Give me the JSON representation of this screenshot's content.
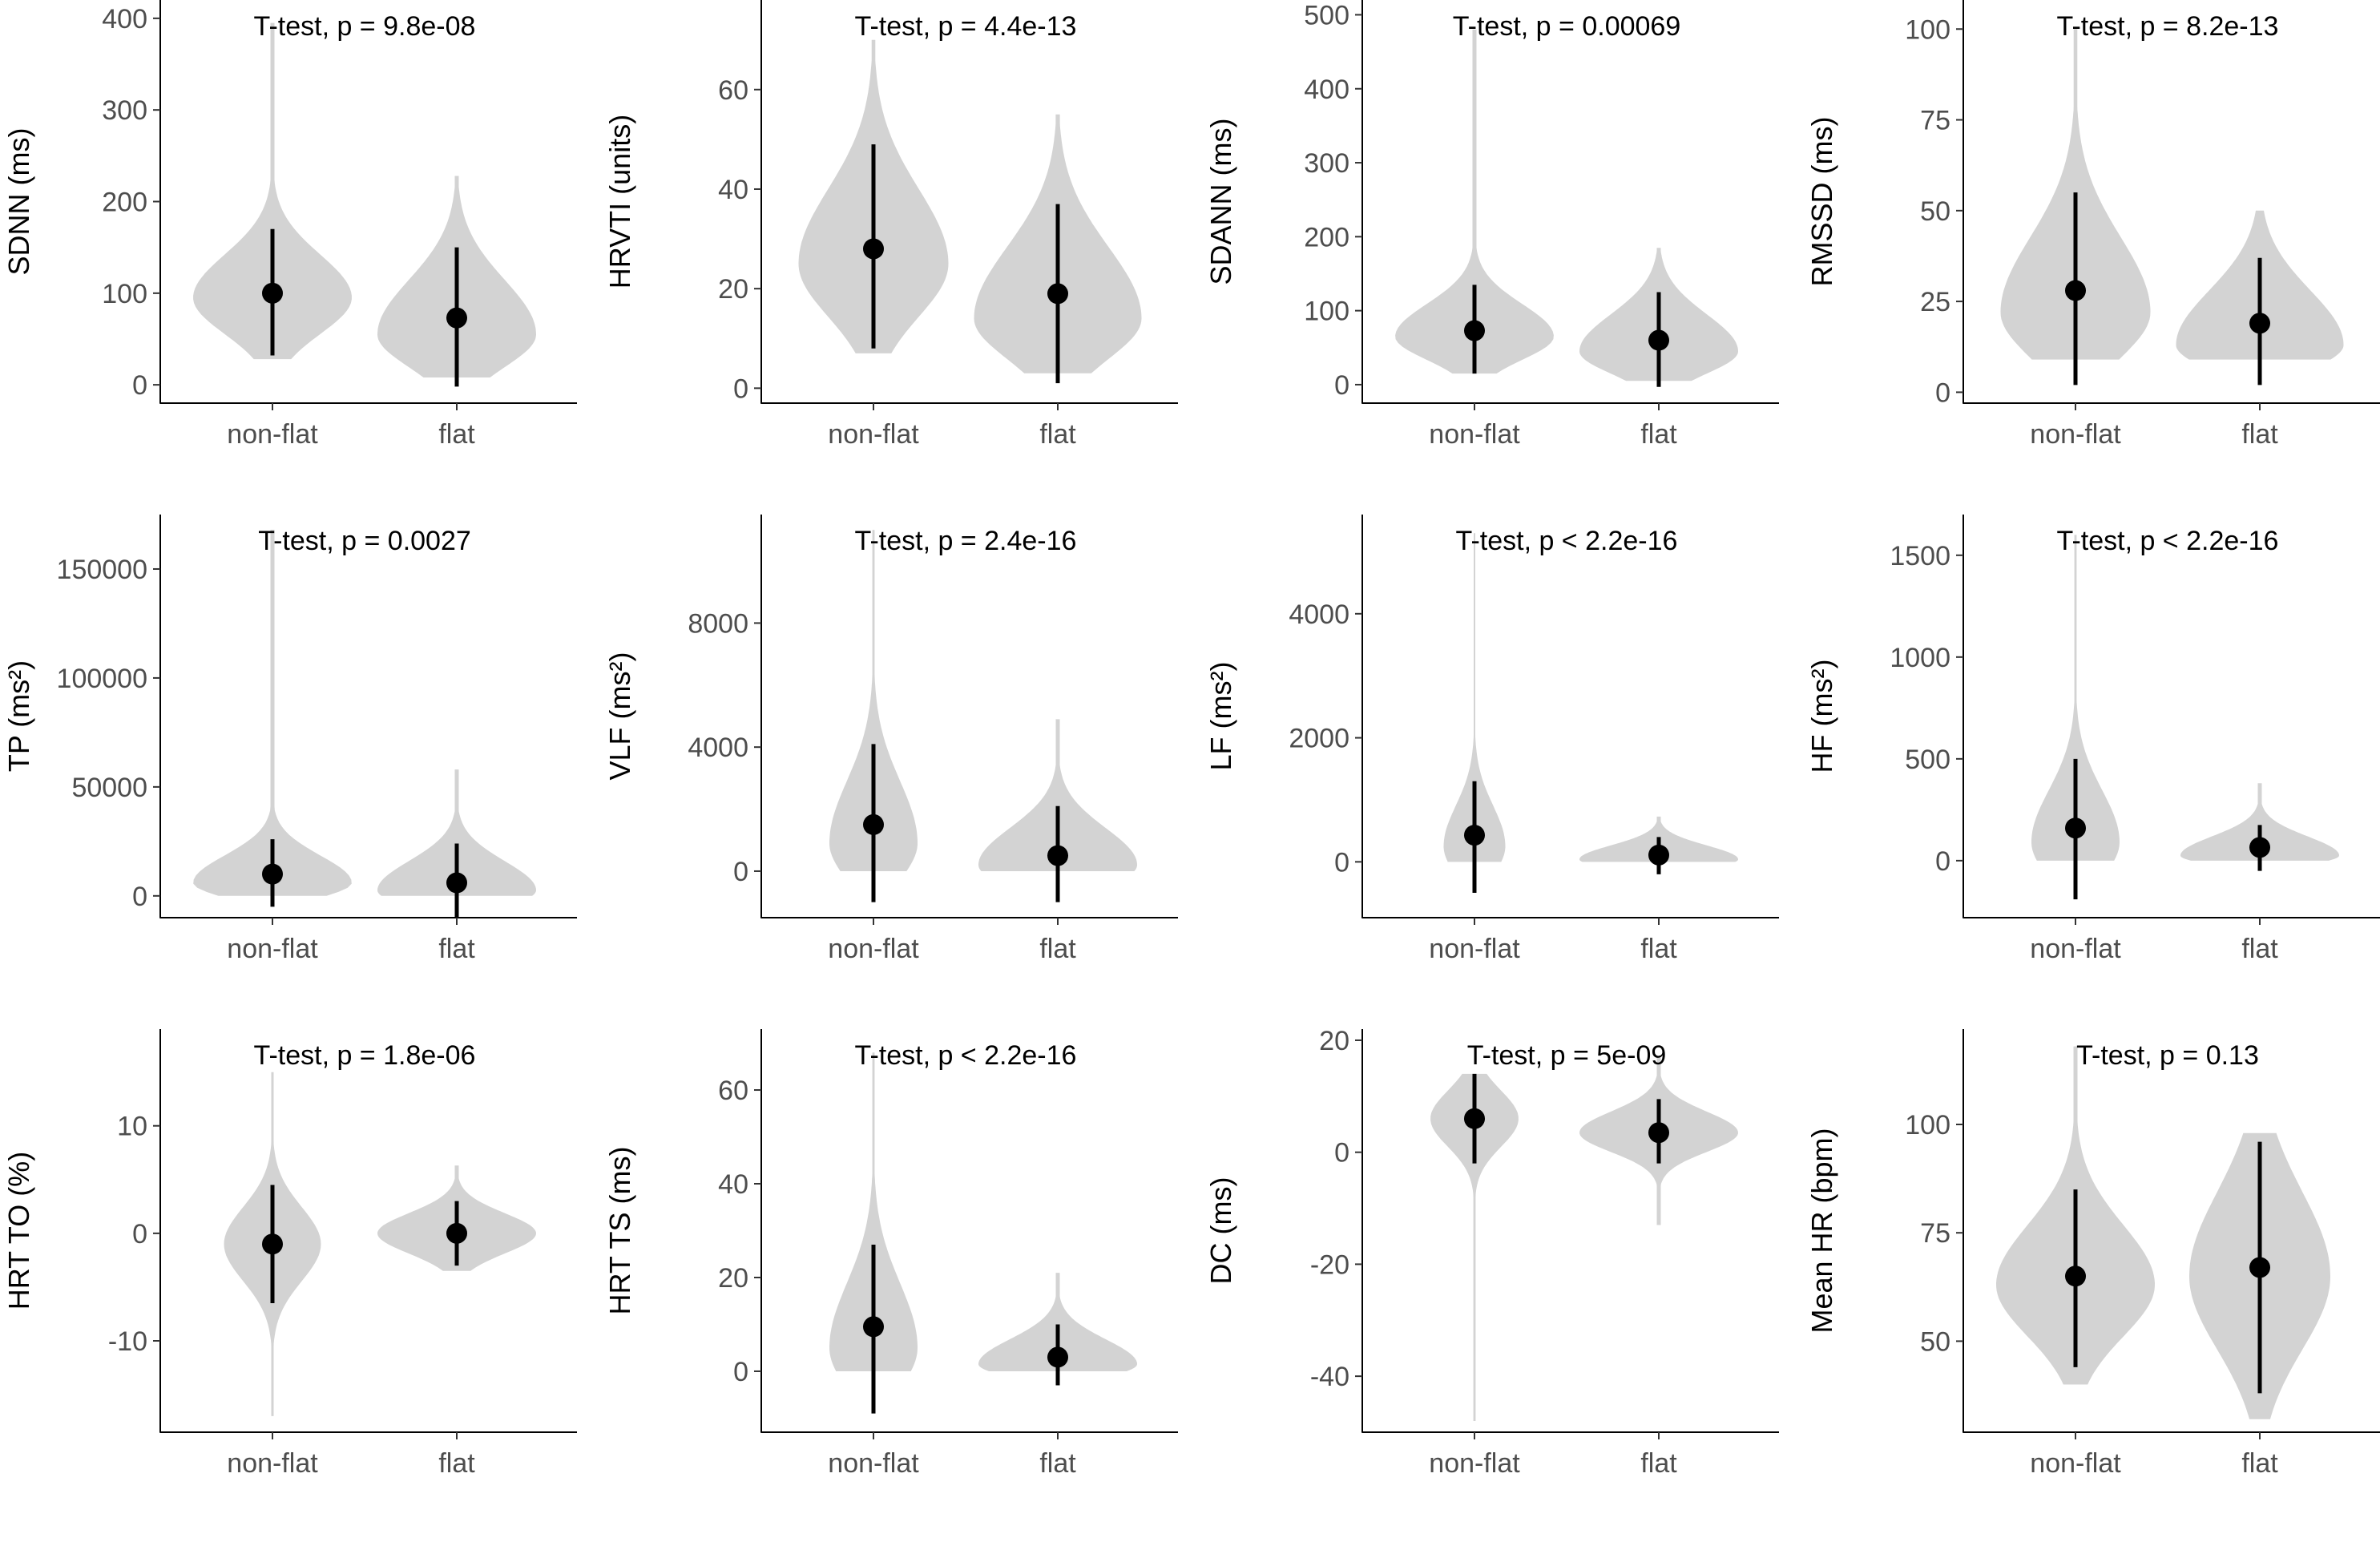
{
  "figure": {
    "type": "violin-grid",
    "rows": 3,
    "cols": 4
  },
  "colors": {
    "violin": "#d3d3d3",
    "point": "#000000",
    "axis": "#000000",
    "tick_text": "#4d4d4d"
  },
  "chart_data": [
    {
      "type": "violin",
      "ylabel": "SDNN (ms)",
      "annotation": "T-test, p = 9.8e-08",
      "ylim": [
        -20,
        420
      ],
      "yticks": [
        0,
        100,
        200,
        300,
        400
      ],
      "ytick_labels": [
        "0",
        "100",
        "200",
        "300",
        "400"
      ],
      "categories": [
        "non-flat",
        "flat"
      ],
      "groups": [
        {
          "name": "non-flat",
          "mean": 100,
          "lo": 32,
          "hi": 170,
          "min": 28,
          "max": 395,
          "mode": 95,
          "width": 0.9
        },
        {
          "name": "flat",
          "mean": 73,
          "lo": -2,
          "hi": 150,
          "min": 8,
          "max": 228,
          "mode": 55,
          "width": 0.9
        }
      ]
    },
    {
      "type": "violin",
      "ylabel": "HRVTI (units)",
      "annotation": "T-test, p = 4.4e-13",
      "ylim": [
        -3,
        78
      ],
      "yticks": [
        0,
        20,
        40,
        60
      ],
      "ytick_labels": [
        "0",
        "20",
        "40",
        "60"
      ],
      "categories": [
        "non-flat",
        "flat"
      ],
      "groups": [
        {
          "name": "non-flat",
          "mean": 28,
          "lo": 8,
          "hi": 49,
          "min": 7,
          "max": 70,
          "mode": 25,
          "width": 0.85
        },
        {
          "name": "flat",
          "mean": 19,
          "lo": 1,
          "hi": 37,
          "min": 3,
          "max": 55,
          "mode": 14,
          "width": 0.95
        }
      ]
    },
    {
      "type": "violin",
      "ylabel": "SDANN (ms)",
      "annotation": "T-test, p = 0.00069",
      "ylim": [
        -25,
        520
      ],
      "yticks": [
        0,
        100,
        200,
        300,
        400,
        500
      ],
      "ytick_labels": [
        "0",
        "100",
        "200",
        "300",
        "400",
        "500"
      ],
      "categories": [
        "non-flat",
        "flat"
      ],
      "groups": [
        {
          "name": "non-flat",
          "mean": 73,
          "lo": 15,
          "hi": 135,
          "min": 15,
          "max": 480,
          "mode": 65,
          "width": 0.9
        },
        {
          "name": "flat",
          "mean": 60,
          "lo": -3,
          "hi": 125,
          "min": 5,
          "max": 185,
          "mode": 45,
          "width": 0.9
        }
      ]
    },
    {
      "type": "violin",
      "ylabel": "RMSSD (ms)",
      "annotation": "T-test, p = 8.2e-13",
      "ylim": [
        -3,
        108
      ],
      "yticks": [
        0,
        25,
        50,
        75,
        100
      ],
      "ytick_labels": [
        "0",
        "25",
        "50",
        "75",
        "100"
      ],
      "categories": [
        "non-flat",
        "flat"
      ],
      "groups": [
        {
          "name": "non-flat",
          "mean": 28,
          "lo": 2,
          "hi": 55,
          "min": 9,
          "max": 100,
          "mode": 22,
          "width": 0.85
        },
        {
          "name": "flat",
          "mean": 19,
          "lo": 2,
          "hi": 37,
          "min": 9,
          "max": 50,
          "mode": 13,
          "width": 0.95
        }
      ]
    },
    {
      "type": "violin",
      "ylabel": "TP (ms²)",
      "annotation": "T-test, p = 0.0027",
      "ylim": [
        -10000,
        175000
      ],
      "yticks": [
        0,
        50000,
        100000,
        150000
      ],
      "ytick_labels": [
        "0",
        "50000",
        "100000",
        "150000"
      ],
      "categories": [
        "non-flat",
        "flat"
      ],
      "groups": [
        {
          "name": "non-flat",
          "mean": 10000,
          "lo": -5000,
          "hi": 26000,
          "min": 0,
          "max": 168000,
          "mode": 6000,
          "width": 0.9
        },
        {
          "name": "flat",
          "mean": 6000,
          "lo": -10000,
          "hi": 24000,
          "min": 0,
          "max": 58000,
          "mode": 2500,
          "width": 0.9
        }
      ]
    },
    {
      "type": "violin",
      "ylabel": "VLF (ms²)",
      "annotation": "T-test, p = 2.4e-16",
      "ylim": [
        -1500,
        11500
      ],
      "yticks": [
        0,
        4000,
        8000
      ],
      "ytick_labels": [
        "0",
        "4000",
        "8000"
      ],
      "categories": [
        "non-flat",
        "flat"
      ],
      "groups": [
        {
          "name": "non-flat",
          "mean": 1500,
          "lo": -1000,
          "hi": 4100,
          "min": 0,
          "max": 11000,
          "mode": 900,
          "width": 0.5
        },
        {
          "name": "flat",
          "mean": 500,
          "lo": -1000,
          "hi": 2100,
          "min": 0,
          "max": 4900,
          "mode": 200,
          "width": 0.9
        }
      ]
    },
    {
      "type": "violin",
      "ylabel": "LF (ms²)",
      "annotation": "T-test, p < 2.2e-16",
      "ylim": [
        -900,
        5600
      ],
      "yticks": [
        0,
        2000,
        4000
      ],
      "ytick_labels": [
        "0",
        "2000",
        "4000"
      ],
      "categories": [
        "non-flat",
        "flat"
      ],
      "groups": [
        {
          "name": "non-flat",
          "mean": 430,
          "lo": -500,
          "hi": 1300,
          "min": 0,
          "max": 5300,
          "mode": 250,
          "width": 0.35
        },
        {
          "name": "flat",
          "mean": 110,
          "lo": -200,
          "hi": 400,
          "min": 0,
          "max": 730,
          "mode": 40,
          "width": 0.9
        }
      ]
    },
    {
      "type": "violin",
      "ylabel": "HF (ms²)",
      "annotation": "T-test, p < 2.2e-16",
      "ylim": [
        -280,
        1700
      ],
      "yticks": [
        0,
        500,
        1000,
        1500
      ],
      "ytick_labels": [
        "0",
        "500",
        "1000",
        "1500"
      ],
      "categories": [
        "non-flat",
        "flat"
      ],
      "groups": [
        {
          "name": "non-flat",
          "mean": 160,
          "lo": -190,
          "hi": 500,
          "min": 0,
          "max": 1600,
          "mode": 90,
          "width": 0.5
        },
        {
          "name": "flat",
          "mean": 65,
          "lo": -50,
          "hi": 175,
          "min": 0,
          "max": 380,
          "mode": 25,
          "width": 0.9
        }
      ]
    },
    {
      "type": "violin",
      "ylabel": "HRT TO (%)",
      "annotation": "T-test, p = 1.8e-06",
      "ylim": [
        -18.5,
        19
      ],
      "yticks": [
        -10,
        0,
        10
      ],
      "ytick_labels": [
        "-10",
        "0",
        "10"
      ],
      "categories": [
        "non-flat",
        "flat"
      ],
      "groups": [
        {
          "name": "non-flat",
          "mean": -1.0,
          "lo": -6.5,
          "hi": 4.5,
          "min": -17,
          "max": 15,
          "mode": -1.0,
          "width": 0.55
        },
        {
          "name": "flat",
          "mean": 0.0,
          "lo": -3,
          "hi": 3,
          "min": -3.5,
          "max": 6.3,
          "mode": 0.0,
          "width": 0.9
        }
      ]
    },
    {
      "type": "violin",
      "ylabel": "HRT TS (ms)",
      "annotation": "T-test, p < 2.2e-16",
      "ylim": [
        -13,
        73
      ],
      "yticks": [
        0,
        20,
        40,
        60
      ],
      "ytick_labels": [
        "0",
        "20",
        "40",
        "60"
      ],
      "categories": [
        "non-flat",
        "flat"
      ],
      "groups": [
        {
          "name": "non-flat",
          "mean": 9.5,
          "lo": -9,
          "hi": 27,
          "min": 0,
          "max": 68,
          "mode": 5,
          "width": 0.5
        },
        {
          "name": "flat",
          "mean": 3,
          "lo": -3,
          "hi": 10,
          "min": 0,
          "max": 21,
          "mode": 1.5,
          "width": 0.9
        }
      ]
    },
    {
      "type": "violin",
      "ylabel": "DC (ms)",
      "annotation": "T-test, p = 5e-09",
      "ylim": [
        -50,
        22
      ],
      "yticks": [
        -40,
        -20,
        0,
        20
      ],
      "ytick_labels": [
        "-40",
        "-20",
        "0",
        "20"
      ],
      "categories": [
        "non-flat",
        "flat"
      ],
      "groups": [
        {
          "name": "non-flat",
          "mean": 6,
          "lo": -2,
          "hi": 14,
          "min": -48,
          "max": 14,
          "mode": 6,
          "width": 0.5
        },
        {
          "name": "flat",
          "mean": 3.5,
          "lo": -2,
          "hi": 9.5,
          "min": -13,
          "max": 17,
          "mode": 3.5,
          "width": 0.9
        }
      ]
    },
    {
      "type": "violin",
      "ylabel": "Mean HR (bpm)",
      "annotation": "T-test, p = 0.13",
      "ylim": [
        29,
        122
      ],
      "yticks": [
        50,
        75,
        100
      ],
      "ytick_labels": [
        "50",
        "75",
        "100"
      ],
      "categories": [
        "non-flat",
        "flat"
      ],
      "groups": [
        {
          "name": "non-flat",
          "mean": 65,
          "lo": 44,
          "hi": 85,
          "min": 40,
          "max": 118,
          "mode": 63,
          "width": 0.9
        },
        {
          "name": "flat",
          "mean": 67,
          "lo": 38,
          "hi": 96,
          "min": 32,
          "max": 98,
          "mode": 65,
          "width": 0.8
        }
      ]
    }
  ]
}
